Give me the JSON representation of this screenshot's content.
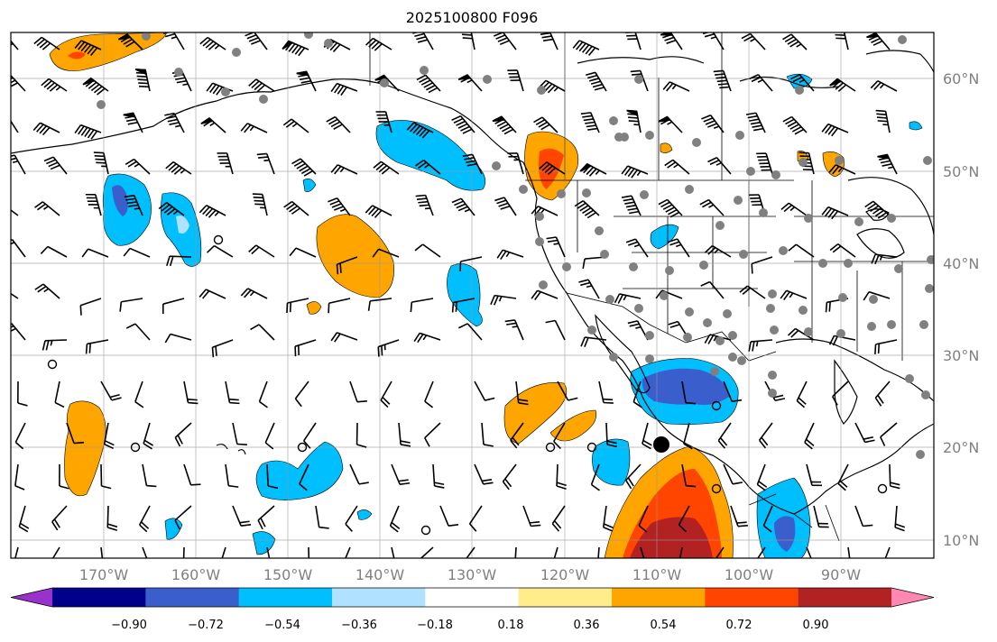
{
  "title": "2025100800 F096",
  "map": {
    "lat_labels": [
      "60°N",
      "50°N",
      "40°N",
      "30°N",
      "20°N",
      "10°N"
    ],
    "lon_labels": [
      "170°W",
      "160°W",
      "150°W",
      "140°W",
      "130°W",
      "120°W",
      "110°W",
      "100°W",
      "90°W"
    ],
    "lon_range": [
      -180,
      -80
    ],
    "lat_range": [
      8,
      65
    ]
  },
  "colorbar": {
    "colors": [
      "#9932cc",
      "#00008b",
      "#3a5fcd",
      "#00bfff",
      "#b0e2ff",
      "#ffffff",
      "#ffec8b",
      "#ffa500",
      "#ff4500",
      "#b22222",
      "#ff88b3"
    ],
    "tick_labels": [
      "−0.90",
      "−0.72",
      "−0.54",
      "−0.36",
      "−0.18",
      "0.18",
      "0.36",
      "0.54",
      "0.72",
      "0.90"
    ]
  }
}
